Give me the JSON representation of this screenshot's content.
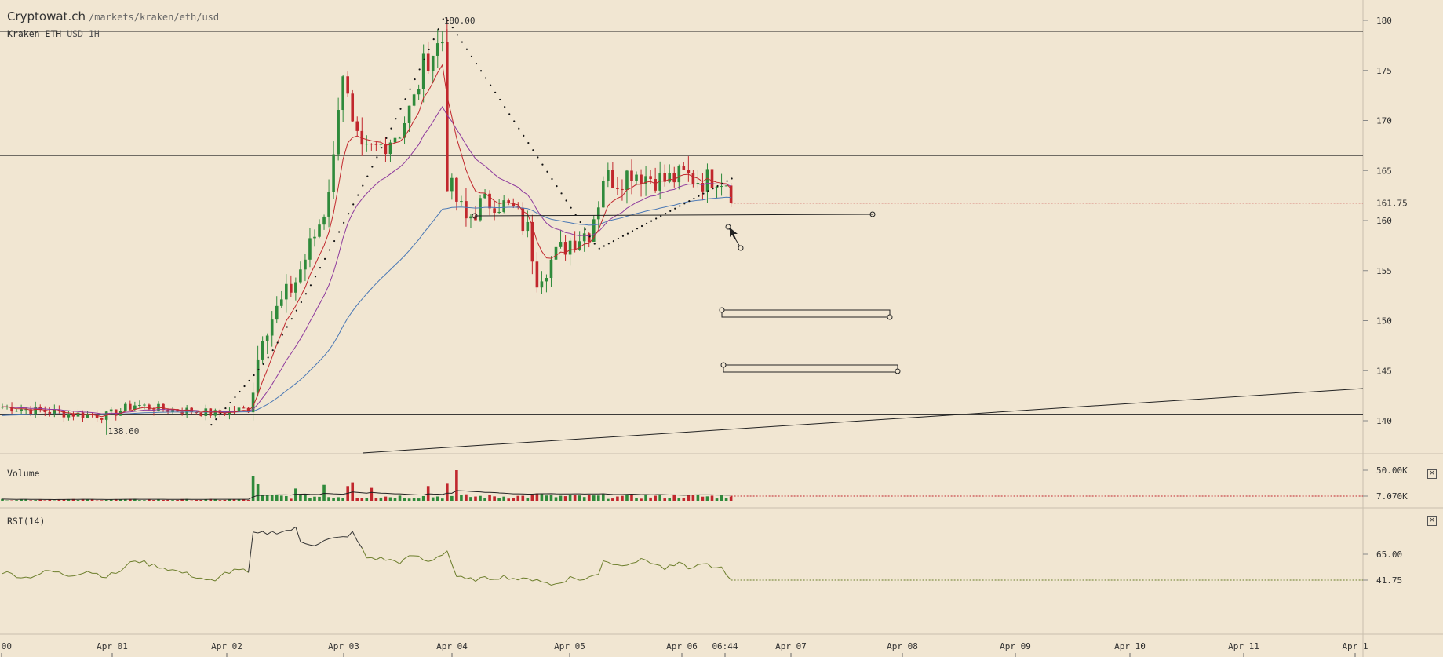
{
  "header": {
    "site": "Cryptowat.ch",
    "path": "/markets/kraken/eth/usd",
    "market": "Kraken ETH",
    "quote": "USD",
    "interval": "1H"
  },
  "colors": {
    "background": "#f1e6d2",
    "up": "#2f8a3b",
    "down": "#c1272d",
    "ema_fast": "#c1272d",
    "ema_mid": "#8e3a9d",
    "ema_slow": "#4a78b5",
    "rsi": "#6b7d2a"
  },
  "chart_data": [
    {
      "type": "candlestick",
      "title": "Kraken ETH USD 1H",
      "x_ticks": [
        ":00",
        "Apr 01",
        "Apr 02",
        "Apr 03",
        "Apr 04",
        "Apr 05",
        "Apr 06",
        "06:44",
        "Apr 07",
        "Apr 08",
        "Apr 09",
        "Apr 10",
        "Apr 11",
        "Apr 1"
      ],
      "y_ticks": [
        180,
        175,
        170,
        165,
        160,
        155,
        150,
        145,
        140
      ],
      "ylim": [
        137.6,
        182.2
      ],
      "last_price": "161.75",
      "annotations": {
        "high": "180.00",
        "low": "138.60"
      },
      "close_anchors": [
        [
          0,
          141.4
        ],
        [
          14,
          140.7
        ],
        [
          22,
          140.5
        ],
        [
          28,
          141.6
        ],
        [
          33,
          141.2
        ],
        [
          40,
          141.0
        ],
        [
          45,
          140.7
        ],
        [
          52,
          141.2
        ],
        [
          53,
          143.5
        ],
        [
          55,
          149.0
        ],
        [
          58,
          151.0
        ],
        [
          62,
          154.0
        ],
        [
          66,
          158.5
        ],
        [
          68,
          161.0
        ],
        [
          70,
          166.0
        ],
        [
          71,
          172.0
        ],
        [
          72,
          175.0
        ],
        [
          74,
          169.0
        ],
        [
          76,
          166.5
        ],
        [
          80,
          167.5
        ],
        [
          84,
          169.0
        ],
        [
          87,
          172.0
        ],
        [
          89,
          175.5
        ],
        [
          92,
          177.5
        ],
        [
          93,
          178.0
        ],
        [
          94,
          164.0
        ],
        [
          96,
          162.0
        ],
        [
          98,
          160.0
        ],
        [
          101,
          161.5
        ],
        [
          104,
          162.0
        ],
        [
          108,
          161.0
        ],
        [
          111,
          159.0
        ],
        [
          113,
          154.5
        ],
        [
          116,
          156.0
        ],
        [
          120,
          158.0
        ],
        [
          124,
          159.0
        ],
        [
          126,
          162.0
        ],
        [
          127,
          164.5
        ],
        [
          130,
          164.0
        ],
        [
          133,
          165.0
        ],
        [
          136,
          164.5
        ],
        [
          140,
          164.0
        ],
        [
          144,
          164.5
        ],
        [
          148,
          164.0
        ],
        [
          151,
          164.5
        ],
        [
          153,
          164.0
        ],
        [
          154,
          161.75
        ]
      ],
      "levels": [
        {
          "price": 178.9
        },
        {
          "price": 166.5
        },
        {
          "price": 140.6
        }
      ]
    },
    {
      "type": "bar",
      "title": "Volume",
      "y_ticks": [
        "50.00K",
        "7.070K"
      ],
      "spikes": [
        [
          53,
          40000
        ],
        [
          54,
          28000
        ],
        [
          62,
          20000
        ],
        [
          68,
          26000
        ],
        [
          73,
          24000
        ],
        [
          74,
          30000
        ],
        [
          78,
          21000
        ],
        [
          90,
          24000
        ],
        [
          94,
          29000
        ],
        [
          96,
          50000
        ],
        [
          113,
          12000
        ],
        [
          114,
          11000
        ],
        [
          130,
          7000
        ],
        [
          154,
          7070
        ]
      ]
    },
    {
      "type": "line",
      "title": "RSI(14)",
      "y_ticks": [
        "65.00",
        "41.75"
      ],
      "anchors": [
        [
          0,
          49
        ],
        [
          5,
          44
        ],
        [
          10,
          50
        ],
        [
          14,
          46
        ],
        [
          18,
          50
        ],
        [
          22,
          45
        ],
        [
          25,
          50
        ],
        [
          28,
          60
        ],
        [
          31,
          56
        ],
        [
          35,
          52
        ],
        [
          40,
          46
        ],
        [
          45,
          40
        ],
        [
          47,
          48
        ],
        [
          50,
          52
        ],
        [
          52,
          48
        ],
        [
          53,
          83
        ],
        [
          56,
          84
        ],
        [
          60,
          86
        ],
        [
          62,
          88
        ],
        [
          63,
          76
        ],
        [
          66,
          74
        ],
        [
          69,
          78
        ],
        [
          72,
          80
        ],
        [
          74,
          84
        ],
        [
          75,
          77
        ],
        [
          77,
          62
        ],
        [
          80,
          61
        ],
        [
          84,
          58
        ],
        [
          87,
          64
        ],
        [
          90,
          58
        ],
        [
          94,
          68
        ],
        [
          96,
          45
        ],
        [
          98,
          42
        ],
        [
          102,
          43
        ],
        [
          106,
          45
        ],
        [
          110,
          42
        ],
        [
          113,
          43
        ],
        [
          116,
          37
        ],
        [
          118,
          40
        ],
        [
          120,
          44
        ],
        [
          123,
          42
        ],
        [
          126,
          48
        ],
        [
          127,
          60
        ],
        [
          130,
          55
        ],
        [
          133,
          58
        ],
        [
          136,
          60
        ],
        [
          140,
          52
        ],
        [
          143,
          56
        ],
        [
          146,
          52
        ],
        [
          148,
          58
        ],
        [
          150,
          52
        ],
        [
          152,
          52
        ],
        [
          154,
          42
        ]
      ]
    }
  ]
}
